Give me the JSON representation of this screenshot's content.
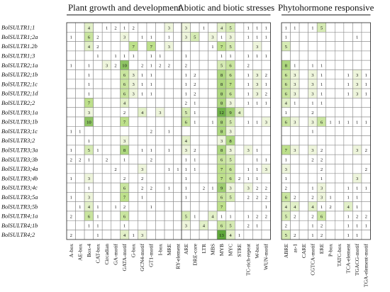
{
  "chart_data": {
    "type": "heatmap",
    "groups": [
      {
        "title": "Plant growth and development",
        "columns": [
          "A-box",
          "AE-box",
          "Box-4",
          "CAT-box",
          "Circadian",
          "GA-motif",
          "GATA-motif",
          "G-box",
          "GCN4-motif",
          "GT1-motif",
          "I-box",
          "MRE",
          "RY-element"
        ]
      },
      {
        "title": "Abiotic and biotic stresses",
        "columns": [
          "ARE",
          "DRE-core",
          "LTR",
          "MBS",
          "MYB",
          "MYC",
          "STRE",
          "TC-rich-repeat",
          "W-box",
          "WUN-motif"
        ]
      },
      {
        "title": "Phytohormone responsive",
        "columns": [
          "ABRE",
          "as-1",
          "CARE",
          "CGTCA-motif",
          "ERE",
          "P-box",
          "TATC-box",
          "TCA-element",
          "TGACG-motif",
          "TGA-element-motif"
        ]
      }
    ],
    "rows": [
      "BolSULTR1;1",
      "BolSULTR1;2a",
      "BolSULTR1.2b",
      "BolSULTR1;3",
      "BolSULTR2;1a",
      "BolSULTR2;1b",
      "BolSULTR2;1c",
      "BolSULTR2;1d",
      "BolSULTR2;2",
      "BolSULTR3;1a",
      "BolSULTR3;1b",
      "BolSULTR3;1c",
      "BolSULTR3;2",
      "BolSULTR3;3a",
      "BolSULTR3;3b",
      "BolSULTR3;4a",
      "BolSULTR3;4b",
      "BolSULTR3;4c",
      "BolSULTR3;5a",
      "BolSULTR3;5b",
      "BolSULTR4;1a",
      "BolSULTR4;1b",
      "BolSULTR4;2"
    ],
    "values": [
      [
        [
          0,
          0,
          4,
          0,
          1,
          2,
          1,
          2,
          0,
          0,
          0,
          3,
          0
        ],
        [
          1,
          0,
          6,
          2,
          0,
          0,
          3,
          0,
          1,
          1,
          0,
          1,
          0
        ],
        [
          0,
          0,
          4,
          2,
          0,
          0,
          0,
          7,
          0,
          7,
          0,
          3,
          0
        ],
        [
          0,
          0,
          0,
          1,
          0,
          1,
          1,
          1,
          0,
          1,
          1,
          0,
          0
        ],
        [
          1,
          0,
          1,
          0,
          3,
          2,
          10,
          0,
          2,
          1,
          2,
          2,
          0
        ],
        [
          0,
          0,
          1,
          0,
          0,
          0,
          6,
          3,
          1,
          1,
          0,
          0,
          0
        ],
        [
          0,
          0,
          1,
          0,
          0,
          0,
          6,
          3,
          1,
          1,
          0,
          0,
          0
        ],
        [
          0,
          0,
          1,
          0,
          0,
          0,
          6,
          3,
          1,
          1,
          0,
          0,
          0
        ],
        [
          0,
          0,
          7,
          0,
          0,
          0,
          4,
          0,
          0,
          0,
          0,
          0,
          0
        ],
        [
          0,
          0,
          3,
          0,
          0,
          0,
          2,
          0,
          4,
          0,
          3,
          0,
          0
        ],
        [
          0,
          0,
          10,
          0,
          0,
          0,
          7,
          0,
          0,
          0,
          0,
          0,
          0
        ],
        [
          1,
          1,
          0,
          0,
          0,
          0,
          0,
          0,
          0,
          2,
          0,
          1,
          0
        ],
        [
          0,
          0,
          1,
          0,
          0,
          0,
          3,
          0,
          0,
          0,
          0,
          0,
          0
        ],
        [
          1,
          0,
          5,
          1,
          0,
          0,
          8,
          0,
          1,
          1,
          0,
          1,
          0
        ],
        [
          2,
          2,
          1,
          0,
          2,
          0,
          1,
          0,
          0,
          2,
          0,
          0,
          0
        ],
        [
          0,
          0,
          0,
          0,
          0,
          2,
          0,
          0,
          3,
          0,
          0,
          1,
          1
        ],
        [
          1,
          0,
          3,
          0,
          0,
          0,
          2,
          0,
          2,
          0,
          0,
          0,
          0
        ],
        [
          0,
          0,
          1,
          0,
          0,
          0,
          6,
          0,
          2,
          2,
          0,
          1,
          0
        ],
        [
          1,
          0,
          3,
          0,
          0,
          0,
          7,
          0,
          1,
          0,
          0,
          0,
          0
        ],
        [
          0,
          1,
          4,
          1,
          0,
          1,
          2,
          0,
          0,
          1,
          0,
          0,
          0
        ],
        [
          2,
          0,
          6,
          1,
          0,
          0,
          6,
          0,
          0,
          0,
          0,
          0,
          0
        ],
        [
          0,
          0,
          1,
          1,
          0,
          0,
          1,
          0,
          0,
          0,
          0,
          0,
          0
        ],
        [
          2,
          0,
          0,
          1,
          0,
          0,
          4,
          1,
          3,
          0,
          0,
          0,
          0
        ]
      ],
      [
        [
          3,
          0,
          1,
          0,
          4,
          5,
          0,
          1,
          1,
          1
        ],
        [
          3,
          5,
          0,
          3,
          1,
          3,
          0,
          1,
          1,
          1
        ],
        [
          0,
          0,
          0,
          1,
          7,
          5,
          0,
          0,
          3,
          0
        ],
        [
          1,
          0,
          0,
          0,
          1,
          1,
          0,
          1,
          1,
          1
        ],
        [
          2,
          0,
          0,
          0,
          5,
          6,
          0,
          2,
          0,
          0
        ],
        [
          1,
          2,
          0,
          0,
          8,
          6,
          0,
          1,
          3,
          2
        ],
        [
          1,
          2,
          0,
          0,
          8,
          7,
          0,
          1,
          3,
          1
        ],
        [
          1,
          2,
          0,
          0,
          8,
          6,
          0,
          1,
          3,
          2
        ],
        [
          2,
          1,
          0,
          0,
          8,
          3,
          0,
          1,
          1,
          1
        ],
        [
          5,
          1,
          0,
          0,
          12,
          9,
          4,
          0,
          0,
          0
        ],
        [
          6,
          1,
          0,
          1,
          8,
          5,
          0,
          1,
          1,
          3
        ],
        [
          0,
          0,
          0,
          0,
          8,
          3,
          0,
          0,
          0,
          0
        ],
        [
          4,
          0,
          0,
          0,
          3,
          8,
          0,
          0,
          0,
          0
        ],
        [
          3,
          2,
          0,
          0,
          8,
          3,
          0,
          3,
          1,
          0
        ],
        [
          1,
          1,
          0,
          0,
          6,
          5,
          0,
          0,
          1,
          1
        ],
        [
          1,
          1,
          0,
          0,
          7,
          6,
          0,
          1,
          1,
          3
        ],
        [
          1,
          0,
          0,
          0,
          7,
          6,
          2,
          1,
          1,
          0
        ],
        [
          1,
          0,
          2,
          1,
          9,
          3,
          0,
          3,
          2,
          2
        ],
        [
          1,
          0,
          0,
          0,
          6,
          5,
          0,
          2,
          2,
          2
        ],
        [
          0,
          0,
          0,
          0,
          7,
          0,
          0,
          0,
          0,
          1
        ],
        [
          5,
          1,
          0,
          4,
          1,
          1,
          0,
          1,
          2,
          2
        ],
        [
          3,
          0,
          4,
          0,
          6,
          5,
          0,
          2,
          1,
          0
        ],
        [
          0,
          0,
          0,
          0,
          13,
          4,
          1,
          0,
          0,
          0
        ]
      ],
      [
        [
          1,
          1,
          0,
          1,
          5,
          0,
          0,
          0,
          0,
          0
        ],
        [
          1,
          0,
          0,
          0,
          0,
          0,
          0,
          0,
          1,
          0
        ],
        [
          5,
          0,
          0,
          0,
          0,
          0,
          0,
          0,
          0,
          0
        ],
        [
          0,
          0,
          0,
          0,
          0,
          0,
          0,
          0,
          0,
          0
        ],
        [
          8,
          1,
          0,
          1,
          1,
          0,
          0,
          0,
          0,
          0
        ],
        [
          6,
          3,
          0,
          3,
          1,
          0,
          0,
          1,
          3,
          1
        ],
        [
          6,
          3,
          0,
          3,
          1,
          0,
          0,
          1,
          3,
          1
        ],
        [
          6,
          3,
          0,
          3,
          1,
          0,
          0,
          1,
          3,
          1
        ],
        [
          4,
          1,
          0,
          1,
          1,
          0,
          0,
          0,
          0,
          0
        ],
        [
          1,
          0,
          0,
          2,
          0,
          0,
          0,
          0,
          0,
          0
        ],
        [
          6,
          3,
          0,
          3,
          6,
          1,
          1,
          1,
          1,
          1
        ],
        [
          0,
          0,
          0,
          1,
          0,
          0,
          0,
          0,
          0,
          0
        ],
        [
          0,
          0,
          0,
          0,
          0,
          0,
          0,
          0,
          0,
          0
        ],
        [
          7,
          3,
          0,
          3,
          2,
          0,
          0,
          0,
          3,
          2
        ],
        [
          1,
          0,
          0,
          2,
          2,
          0,
          0,
          0,
          0,
          0
        ],
        [
          3,
          0,
          0,
          0,
          2,
          0,
          0,
          0,
          0,
          2
        ],
        [
          1,
          0,
          0,
          0,
          1,
          0,
          0,
          0,
          3,
          0
        ],
        [
          2,
          0,
          0,
          1,
          3,
          0,
          0,
          1,
          1,
          1
        ],
        [
          6,
          2,
          0,
          2,
          3,
          1,
          0,
          1,
          1,
          0
        ],
        [
          4,
          4,
          0,
          4,
          1,
          2,
          0,
          4,
          1,
          0
        ],
        [
          5,
          2,
          0,
          2,
          6,
          0,
          0,
          1,
          2,
          2
        ],
        [
          2,
          0,
          0,
          1,
          2,
          0,
          0,
          1,
          1,
          1
        ],
        [
          5,
          2,
          0,
          1,
          2,
          0,
          0,
          1,
          1,
          0
        ]
      ]
    ],
    "color_scale": {
      "low": "#eef5dc",
      "mid": "#bde08b",
      "high": "#5fa83a",
      "empty": "#ffffff",
      "grid": "#8c8c8c"
    }
  }
}
